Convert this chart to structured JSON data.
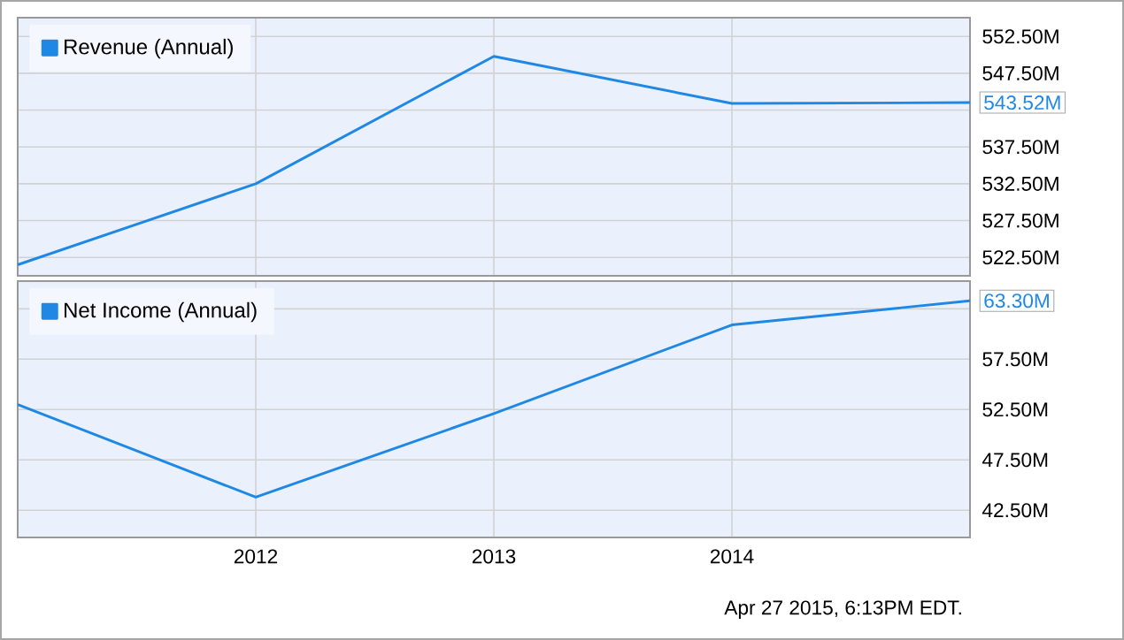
{
  "chart_data": [
    {
      "type": "line",
      "x": [
        2011,
        2012,
        2013,
        2014,
        2015
      ],
      "xlim": [
        2011,
        2015
      ],
      "xticks": [
        2012,
        2013,
        2014
      ],
      "tick_labels": "y",
      "ylim": [
        520,
        555.05
      ],
      "yticks": [
        {
          "value": 522.5,
          "label": "522.50M"
        },
        {
          "value": 527.5,
          "label": "527.50M"
        },
        {
          "value": 532.5,
          "label": "532.50M"
        },
        {
          "value": 537.5,
          "label": "537.50M"
        },
        {
          "value": 542.5,
          "label": null
        },
        {
          "value": 547.5,
          "label": "547.50M"
        },
        {
          "value": 552.5,
          "label": "552.50M"
        }
      ],
      "series": [
        {
          "name": "Revenue (Annual)",
          "color": "#1f88e5",
          "values": [
            521.5,
            532.5,
            549.8,
            543.4,
            543.52
          ],
          "value_labels": [
            null,
            null,
            null,
            null,
            "543.52M"
          ]
        }
      ],
      "grid": true,
      "legend": "top left",
      "marker": "none"
    },
    {
      "type": "line",
      "x": [
        2011,
        2012,
        2013,
        2014,
        2015
      ],
      "xlim": [
        2011,
        2015
      ],
      "xticks": [
        2012,
        2013,
        2014
      ],
      "ylim": [
        39.8,
        65.25
      ],
      "yticks": [
        {
          "value": 42.5,
          "label": "42.50M"
        },
        {
          "value": 47.5,
          "label": "47.50M"
        },
        {
          "value": 52.5,
          "label": "52.50M"
        },
        {
          "value": 57.5,
          "label": "57.50M"
        },
        {
          "value": 62.5,
          "label": null
        }
      ],
      "series": [
        {
          "name": "Net Income (Annual)",
          "color": "#1f88e5",
          "values": [
            53.0,
            43.8,
            52.1,
            60.9,
            63.3
          ],
          "value_labels": [
            null,
            null,
            null,
            null,
            "63.30M"
          ]
        }
      ],
      "grid": true,
      "legend": "top left",
      "marker": "none",
      "annotations": [
        "Apr 27 2015, 6:13PM EDT."
      ]
    }
  ]
}
